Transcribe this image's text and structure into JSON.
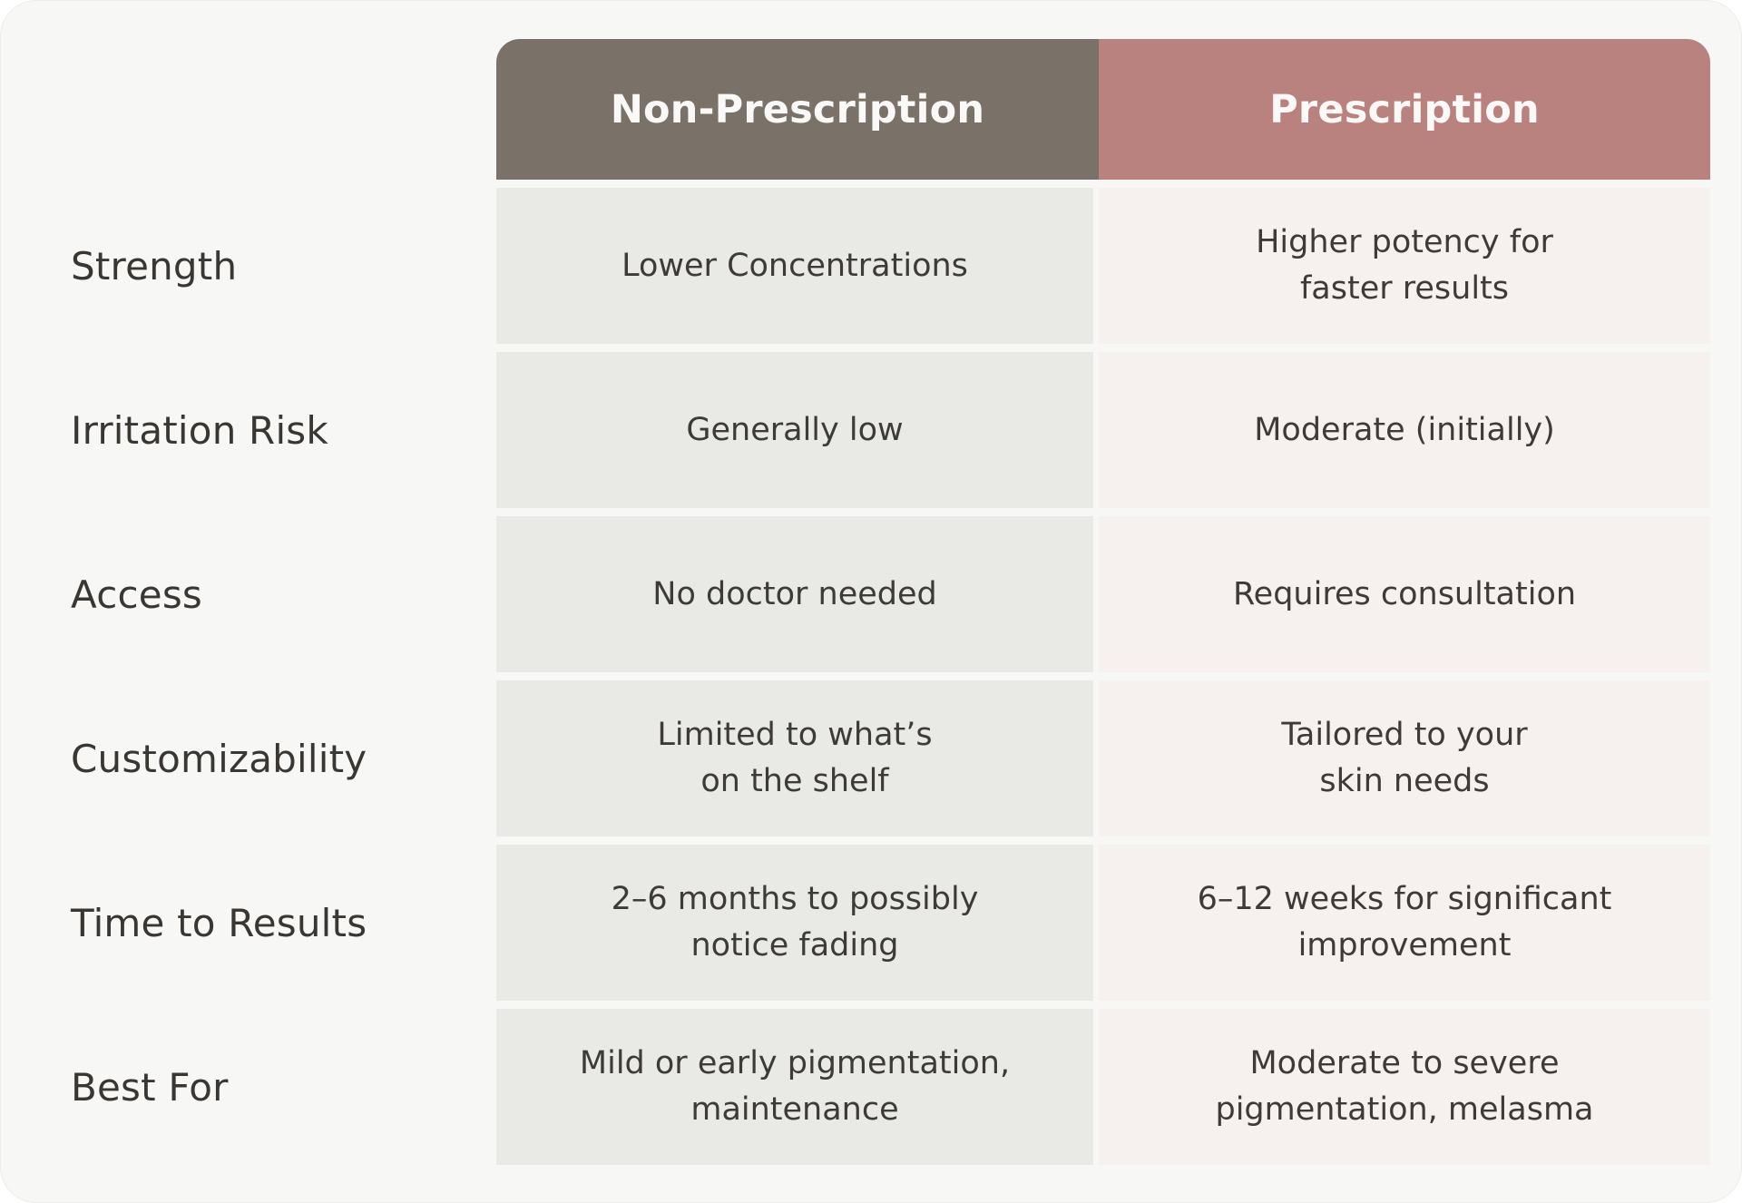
{
  "colors": {
    "page_background": "#ffffff",
    "card_background": "#f7f7f6",
    "header_non_prescription_bg": "#7a7168",
    "header_prescription_bg": "#ba827e",
    "cell_non_prescription_bg": "#e9eae5",
    "cell_prescription_bg": "#f6f0ef",
    "header_text": "#faf9f7",
    "body_text": "#3e3b37"
  },
  "table": {
    "headers": {
      "non_prescription": "Non-Prescription",
      "prescription": "Prescription"
    },
    "rows": [
      {
        "label": "Strength",
        "non_prescription": "Lower Concentrations",
        "prescription": "Higher potency for\nfaster results"
      },
      {
        "label": "Irritation Risk",
        "non_prescription": "Generally low",
        "prescription": "Moderate (initially)"
      },
      {
        "label": "Access",
        "non_prescription": "No doctor needed",
        "prescription": "Requires consultation"
      },
      {
        "label": "Customizability",
        "non_prescription": "Limited to what’s\non the shelf",
        "prescription": "Tailored to your\nskin needs"
      },
      {
        "label": "Time to Results",
        "non_prescription": "2–6 months to possibly\nnotice fading",
        "prescription": "6–12 weeks for significant\nimprovement"
      },
      {
        "label": "Best For",
        "non_prescription": "Mild or early pigmentation,\nmaintenance",
        "prescription": "Moderate to severe\npigmentation, melasma"
      }
    ]
  },
  "chart_data": {
    "type": "table",
    "title": "",
    "columns": [
      "",
      "Non-Prescription",
      "Prescription"
    ],
    "rows": [
      [
        "Strength",
        "Lower Concentrations",
        "Higher potency for faster results"
      ],
      [
        "Irritation Risk",
        "Generally low",
        "Moderate (initially)"
      ],
      [
        "Access",
        "No doctor needed",
        "Requires consultation"
      ],
      [
        "Customizability",
        "Limited to what’s on the shelf",
        "Tailored to your skin needs"
      ],
      [
        "Time to Results",
        "2–6 months to possibly notice fading",
        "6–12 weeks for significant improvement"
      ],
      [
        "Best For",
        "Mild or early pigmentation, maintenance",
        "Moderate to severe pigmentation, melasma"
      ]
    ],
    "layout_hints": {
      "header_fill_colors": [
        "#7a7168",
        "#ba827e"
      ],
      "body_fill_colors": [
        "#e9eae5",
        "#f6f0ef"
      ],
      "rounded_corners": true
    }
  }
}
